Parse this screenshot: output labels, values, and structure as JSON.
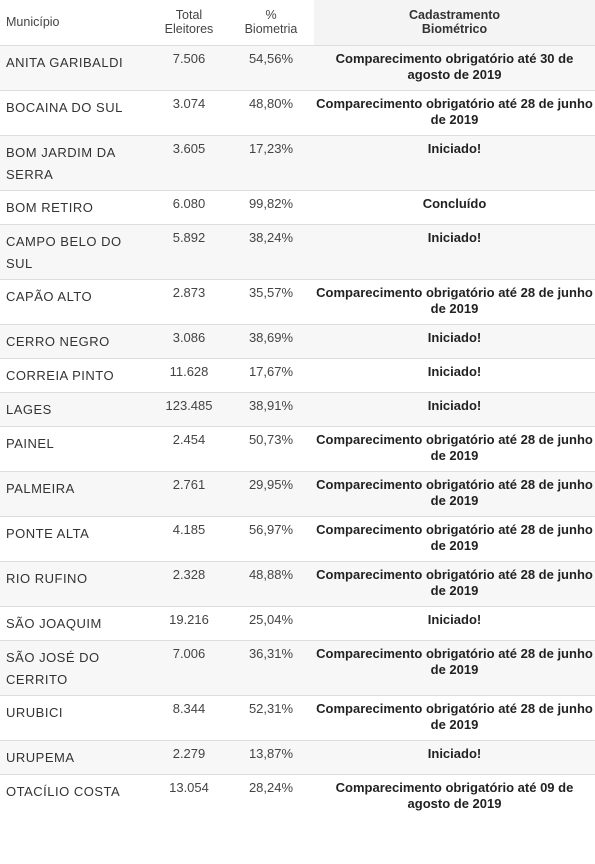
{
  "header": {
    "municipio": "Município",
    "total_line1": "Total",
    "total_line2": "Eleitores",
    "pct_line1": "%",
    "pct_line2": "Biometria",
    "cad_line1": "Cadastramento",
    "cad_line2": "Biométrico"
  },
  "rows": [
    {
      "municipio": "ANITA GARIBALDI",
      "total": "7.506",
      "pct": "54,56%",
      "status": "Comparecimento obrigatório até 30 de agosto de 2019"
    },
    {
      "municipio": "BOCAINA DO SUL",
      "total": "3.074",
      "pct": "48,80%",
      "status": "Comparecimento obrigatório até 28 de junho de 2019"
    },
    {
      "municipio": "BOM JARDIM DA SERRA",
      "total": "3.605",
      "pct": "17,23%",
      "status": "Iniciado!"
    },
    {
      "municipio": "BOM RETIRO",
      "total": "6.080",
      "pct": "99,82%",
      "status": "Concluído"
    },
    {
      "municipio": "CAMPO BELO DO SUL",
      "total": "5.892",
      "pct": "38,24%",
      "status": "Iniciado!"
    },
    {
      "municipio": "CAPÃO ALTO",
      "total": "2.873",
      "pct": "35,57%",
      "status": "Comparecimento obrigatório até 28 de junho de 2019"
    },
    {
      "municipio": "CERRO NEGRO",
      "total": "3.086",
      "pct": "38,69%",
      "status": "Iniciado!"
    },
    {
      "municipio": "CORREIA PINTO",
      "total": "11.628",
      "pct": "17,67%",
      "status": "Iniciado!"
    },
    {
      "municipio": "LAGES",
      "total": "123.485",
      "pct": "38,91%",
      "status": "Iniciado!"
    },
    {
      "municipio": "PAINEL",
      "total": "2.454",
      "pct": "50,73%",
      "status": "Comparecimento obrigatório até 28 de junho de 2019"
    },
    {
      "municipio": "PALMEIRA",
      "total": "2.761",
      "pct": "29,95%",
      "status": "Comparecimento obrigatório até 28 de junho de 2019"
    },
    {
      "municipio": "PONTE ALTA",
      "total": "4.185",
      "pct": "56,97%",
      "status": "Comparecimento obrigatório até 28 de junho de 2019"
    },
    {
      "municipio": "RIO RUFINO",
      "total": "2.328",
      "pct": "48,88%",
      "status": "Comparecimento obrigatório até 28 de junho de 2019"
    },
    {
      "municipio": "SÃO JOAQUIM",
      "total": "19.216",
      "pct": "25,04%",
      "status": "Iniciado!"
    },
    {
      "municipio": "SÃO JOSÉ DO CERRITO",
      "total": "7.006",
      "pct": "36,31%",
      "status": "Comparecimento obrigatório até 28 de junho de 2019"
    },
    {
      "municipio": "URUBICI",
      "total": "8.344",
      "pct": "52,31%",
      "status": "Comparecimento obrigatório até 28 de junho de 2019"
    },
    {
      "municipio": "URUPEMA",
      "total": "2.279",
      "pct": "13,87%",
      "status": "Iniciado!"
    },
    {
      "municipio": "OTACÍLIO COSTA",
      "total": "13.054",
      "pct": "28,24%",
      "status": "Comparecimento obrigatório até 09 de agosto de 2019"
    }
  ]
}
